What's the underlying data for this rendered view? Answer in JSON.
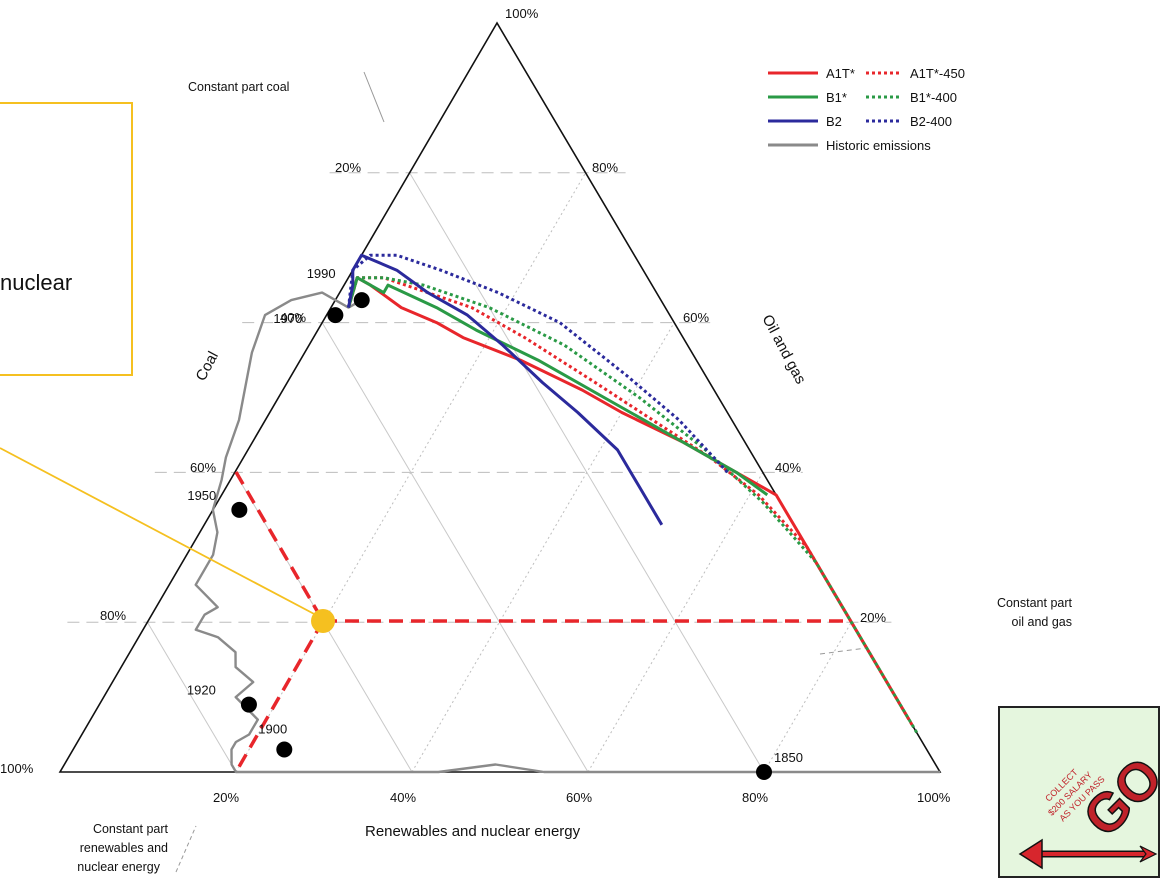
{
  "callout": {
    "text": "nuclear"
  },
  "chart_data": {
    "type": "ternary",
    "corners": {
      "top": "Oil and gas",
      "left": "Coal",
      "right": "Renewables and nuclear energy"
    },
    "apex_label": "100%",
    "axes": {
      "coal": {
        "label": "Coal",
        "ticks": [
          "20%",
          "40%",
          "60%",
          "80%",
          "100%"
        ]
      },
      "oil_gas": {
        "label": "Oil and gas",
        "ticks": [
          "80%",
          "60%",
          "40%",
          "20%"
        ]
      },
      "renewables": {
        "label": "Renewables and nuclear energy",
        "ticks": [
          "20%",
          "40%",
          "60%",
          "80%",
          "100%"
        ]
      }
    },
    "annotations": {
      "constant_coal": "Constant part coal",
      "constant_oil_gas": [
        "Constant part",
        "oil and gas"
      ],
      "constant_renewables": [
        "Constant part",
        "renewables and",
        "nuclear energy"
      ]
    },
    "legend": [
      {
        "name": "A1T*",
        "color": "#e8262b",
        "dash": false
      },
      {
        "name": "A1T*-450",
        "color": "#e8262b",
        "dash": true
      },
      {
        "name": "B1*",
        "color": "#2a9a46",
        "dash": false
      },
      {
        "name": "B1*-400",
        "color": "#2a9a46",
        "dash": true
      },
      {
        "name": "B2",
        "color": "#2b2a9c",
        "dash": false
      },
      {
        "name": "B2-400",
        "color": "#2b2a9c",
        "dash": true
      },
      {
        "name": "Historic emissions",
        "color": "#8a8a8a",
        "dash": false
      }
    ],
    "legend_position": "top-right",
    "grid": true,
    "series": [
      {
        "name": "Historic emissions",
        "color": "#8a8a8a",
        "dash": false,
        "points": [
          [
            0.0,
            0.0
          ],
          [
            0.27,
            0.0
          ],
          [
            0.33,
            0.0
          ],
          [
            0.39,
            0.0
          ],
          [
            0.45,
            0.0
          ],
          [
            0.5,
            0.01
          ],
          [
            0.57,
            0.0
          ],
          [
            0.62,
            0.0
          ],
          [
            0.67,
            0.0
          ],
          [
            0.72,
            0.0
          ],
          [
            0.78,
            0.0
          ],
          [
            0.8,
            0.0
          ],
          [
            0.8,
            0.01
          ],
          [
            0.79,
            0.03
          ],
          [
            0.78,
            0.04
          ],
          [
            0.76,
            0.05
          ],
          [
            0.74,
            0.07
          ],
          [
            0.75,
            0.1
          ],
          [
            0.72,
            0.12
          ],
          [
            0.73,
            0.14
          ],
          [
            0.72,
            0.16
          ],
          [
            0.73,
            0.18
          ],
          [
            0.75,
            0.19
          ],
          [
            0.74,
            0.2
          ],
          [
            0.73,
            0.21
          ],
          [
            0.71,
            0.22
          ],
          [
            0.72,
            0.25
          ],
          [
            0.7,
            0.27
          ],
          [
            0.68,
            0.29
          ],
          [
            0.66,
            0.32
          ],
          [
            0.65,
            0.35
          ],
          [
            0.62,
            0.39
          ],
          [
            0.6,
            0.42
          ],
          [
            0.56,
            0.47
          ],
          [
            0.54,
            0.5
          ],
          [
            0.52,
            0.53
          ],
          [
            0.5,
            0.56
          ],
          [
            0.46,
            0.61
          ],
          [
            0.42,
            0.63
          ],
          [
            0.38,
            0.64
          ],
          [
            0.36,
            0.62
          ],
          [
            0.34,
            0.63
          ]
        ]
      },
      {
        "name": "A1T*",
        "color": "#e8262b",
        "dash": false,
        "points": [
          [
            0.36,
            0.62
          ],
          [
            0.33,
            0.66
          ],
          [
            0.32,
            0.65
          ],
          [
            0.3,
            0.62
          ],
          [
            0.27,
            0.6
          ],
          [
            0.25,
            0.58
          ],
          [
            0.2,
            0.55
          ],
          [
            0.15,
            0.51
          ],
          [
            0.12,
            0.48
          ],
          [
            0.07,
            0.44
          ],
          [
            0.03,
            0.4
          ],
          [
            0.0,
            0.37
          ],
          [
            0.0,
            0.3
          ],
          [
            0.0,
            0.2
          ],
          [
            0.0,
            0.1
          ],
          [
            0.0,
            0.07
          ]
        ]
      },
      {
        "name": "A1T*-450",
        "color": "#e8262b",
        "dash": true,
        "points": [
          [
            0.36,
            0.62
          ],
          [
            0.33,
            0.66
          ],
          [
            0.3,
            0.66
          ],
          [
            0.26,
            0.64
          ],
          [
            0.22,
            0.62
          ],
          [
            0.18,
            0.58
          ],
          [
            0.13,
            0.52
          ],
          [
            0.09,
            0.47
          ],
          [
            0.05,
            0.42
          ],
          [
            0.02,
            0.37
          ],
          [
            0.0,
            0.3
          ],
          [
            0.0,
            0.2
          ],
          [
            0.0,
            0.1
          ],
          [
            0.0,
            0.06
          ]
        ]
      },
      {
        "name": "B1*",
        "color": "#2a9a46",
        "dash": false,
        "points": [
          [
            0.36,
            0.62
          ],
          [
            0.33,
            0.66
          ],
          [
            0.31,
            0.64
          ],
          [
            0.3,
            0.65
          ],
          [
            0.26,
            0.62
          ],
          [
            0.23,
            0.59
          ],
          [
            0.18,
            0.55
          ],
          [
            0.12,
            0.49
          ],
          [
            0.07,
            0.44
          ],
          [
            0.03,
            0.4
          ],
          [
            0.01,
            0.37
          ]
        ]
      },
      {
        "name": "B1*-400",
        "color": "#2a9a46",
        "dash": true,
        "points": [
          [
            0.36,
            0.62
          ],
          [
            0.33,
            0.66
          ],
          [
            0.3,
            0.66
          ],
          [
            0.26,
            0.65
          ],
          [
            0.2,
            0.62
          ],
          [
            0.14,
            0.57
          ],
          [
            0.09,
            0.5
          ],
          [
            0.05,
            0.43
          ],
          [
            0.02,
            0.36
          ],
          [
            0.0,
            0.28
          ],
          [
            0.0,
            0.18
          ],
          [
            0.0,
            0.05
          ]
        ]
      },
      {
        "name": "B2",
        "color": "#2b2a9c",
        "dash": false,
        "points": [
          [
            0.36,
            0.62
          ],
          [
            0.34,
            0.65
          ],
          [
            0.33,
            0.67
          ],
          [
            0.31,
            0.69
          ],
          [
            0.28,
            0.67
          ],
          [
            0.26,
            0.64
          ],
          [
            0.23,
            0.61
          ],
          [
            0.21,
            0.57
          ],
          [
            0.19,
            0.52
          ],
          [
            0.17,
            0.48
          ],
          [
            0.15,
            0.43
          ],
          [
            0.15,
            0.38
          ],
          [
            0.15,
            0.33
          ]
        ]
      },
      {
        "name": "B2-400",
        "color": "#2b2a9c",
        "dash": true,
        "points": [
          [
            0.36,
            0.62
          ],
          [
            0.33,
            0.67
          ],
          [
            0.3,
            0.69
          ],
          [
            0.27,
            0.69
          ],
          [
            0.23,
            0.67
          ],
          [
            0.18,
            0.64
          ],
          [
            0.13,
            0.6
          ],
          [
            0.09,
            0.53
          ],
          [
            0.06,
            0.47
          ],
          [
            0.04,
            0.4
          ]
        ]
      }
    ],
    "years": [
      {
        "label": "1990",
        "coal": 0.34,
        "oil_gas": 0.63
      },
      {
        "label": "1970",
        "coal": 0.38,
        "oil_gas": 0.61
      },
      {
        "label": "1950",
        "coal": 0.62,
        "oil_gas": 0.35
      },
      {
        "label": "1920",
        "coal": 0.74,
        "oil_gas": 0.09
      },
      {
        "label": "1900",
        "coal": 0.73,
        "oil_gas": 0.03
      },
      {
        "label": "1850",
        "coal": 0.2,
        "oil_gas": 0.0
      }
    ],
    "highlight_point": {
      "coal": 0.7,
      "oil_gas": 0.2,
      "renewables": 0.1
    }
  },
  "badge": {
    "collect": "COLLECT",
    "salary": "$200 SALARY",
    "pass": "AS YOU PASS",
    "go": "GO"
  }
}
